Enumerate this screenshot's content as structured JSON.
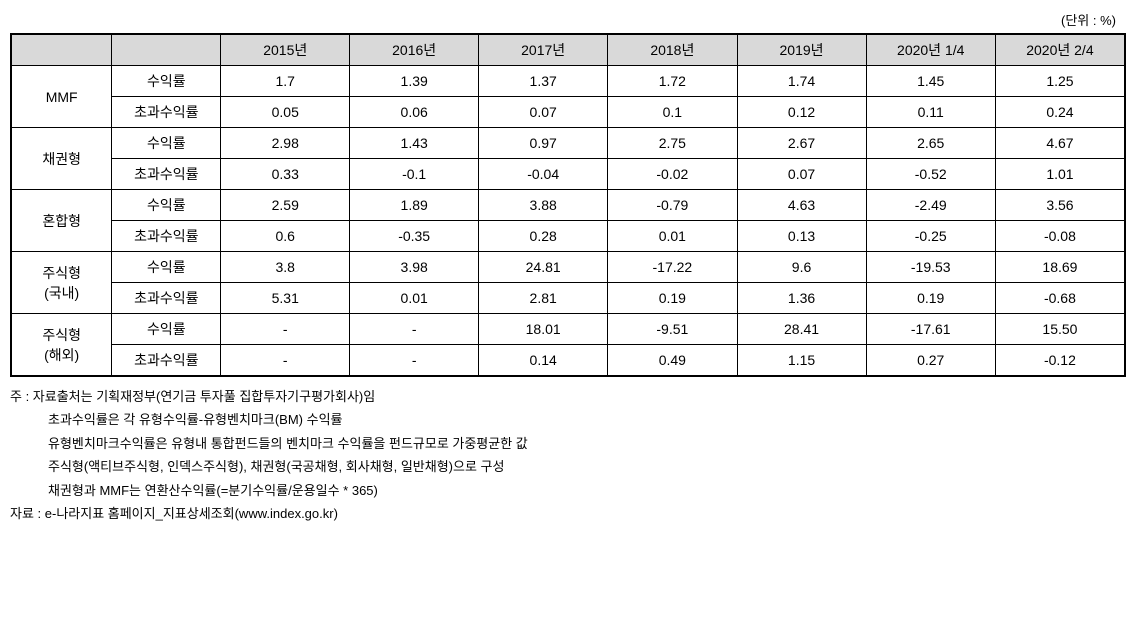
{
  "unit_label": "(단위 : %)",
  "table": {
    "header_bg_color": "#d9d9d9",
    "border_color": "#000000",
    "columns": [
      "",
      "",
      "2015년",
      "2016년",
      "2017년",
      "2018년",
      "2019년",
      "2020년 1/4",
      "2020년 2/4"
    ],
    "categories": [
      {
        "name": "MMF",
        "rows": [
          {
            "metric": "수익률",
            "values": [
              "1.7",
              "1.39",
              "1.37",
              "1.72",
              "1.74",
              "1.45",
              "1.25"
            ]
          },
          {
            "metric": "초과수익률",
            "values": [
              "0.05",
              "0.06",
              "0.07",
              "0.1",
              "0.12",
              "0.11",
              "0.24"
            ]
          }
        ]
      },
      {
        "name": "채권형",
        "rows": [
          {
            "metric": "수익률",
            "values": [
              "2.98",
              "1.43",
              "0.97",
              "2.75",
              "2.67",
              "2.65",
              "4.67"
            ]
          },
          {
            "metric": "초과수익률",
            "values": [
              "0.33",
              "-0.1",
              "-0.04",
              "-0.02",
              "0.07",
              "-0.52",
              "1.01"
            ]
          }
        ]
      },
      {
        "name": "혼합형",
        "rows": [
          {
            "metric": "수익률",
            "values": [
              "2.59",
              "1.89",
              "3.88",
              "-0.79",
              "4.63",
              "-2.49",
              "3.56"
            ]
          },
          {
            "metric": "초과수익률",
            "values": [
              "0.6",
              "-0.35",
              "0.28",
              "0.01",
              "0.13",
              "-0.25",
              "-0.08"
            ]
          }
        ]
      },
      {
        "name": "주식형\n(국내)",
        "rows": [
          {
            "metric": "수익률",
            "values": [
              "3.8",
              "3.98",
              "24.81",
              "-17.22",
              "9.6",
              "-19.53",
              "18.69"
            ]
          },
          {
            "metric": "초과수익률",
            "values": [
              "5.31",
              "0.01",
              "2.81",
              "0.19",
              "1.36",
              "0.19",
              "-0.68"
            ]
          }
        ]
      },
      {
        "name": "주식형\n(해외)",
        "rows": [
          {
            "metric": "수익률",
            "values": [
              "-",
              "-",
              "18.01",
              "-9.51",
              "28.41",
              "-17.61",
              "15.50"
            ]
          },
          {
            "metric": "초과수익률",
            "values": [
              "-",
              "-",
              "0.14",
              "0.49",
              "1.15",
              "0.27",
              "-0.12"
            ]
          }
        ]
      }
    ]
  },
  "notes": {
    "line1": "주 : 자료출처는 기획재정부(연기금 투자풀 집합투자기구평가회사)임",
    "line2": "초과수익률은 각 유형수익률-유형벤치마크(BM) 수익률",
    "line3": "유형벤치마크수익률은 유형내 통합펀드들의 벤치마크 수익률을 펀드규모로 가중평균한 값",
    "line4": "주식형(액티브주식형, 인덱스주식형), 채권형(국공채형, 회사채형, 일반채형)으로 구성",
    "line5": "채권형과 MMF는 연환산수익률(=분기수익률/운용일수 * 365)",
    "line6": "자료 : e-나라지표 홈페이지_지표상세조회(www.index.go.kr)"
  }
}
